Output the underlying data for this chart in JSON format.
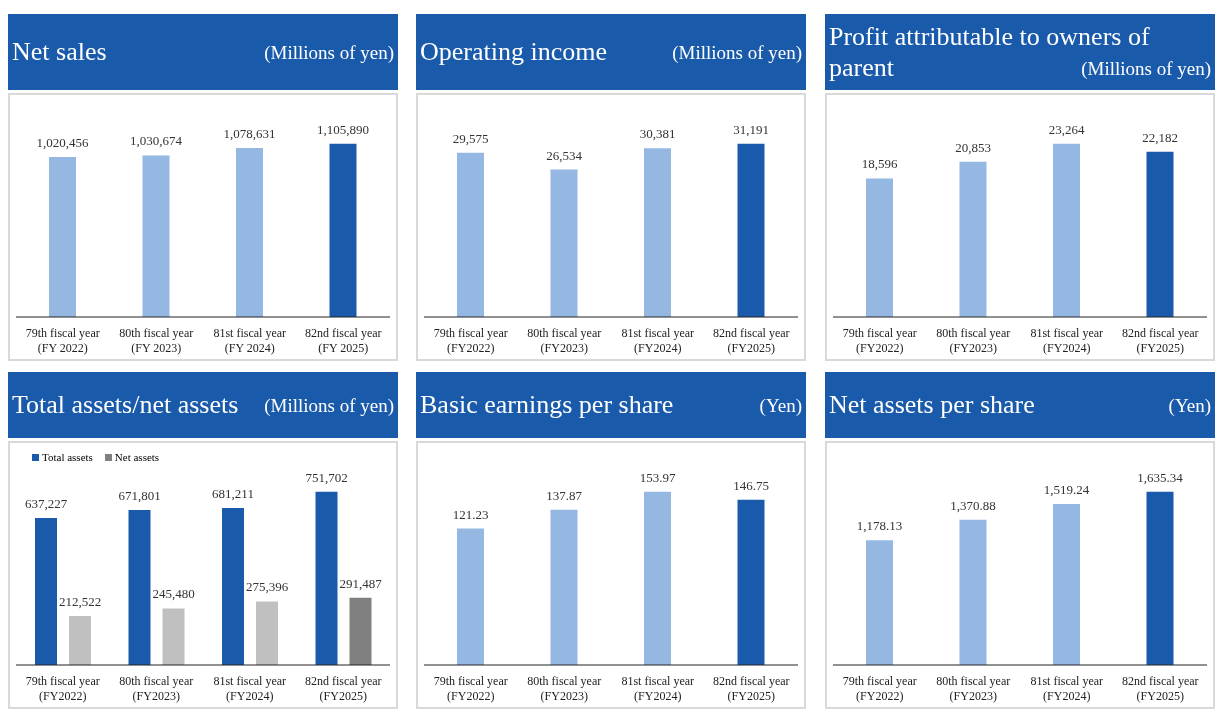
{
  "chart_data": [
    {
      "type": "bar",
      "title": "Net sales",
      "subtitle": "(Millions of yen)",
      "categories": [
        "79th fiscal year\n(FY 2022)",
        "80th fiscal year\n(FY 2023)",
        "81st fiscal year\n(FY 2024)",
        "82nd fiscal year\n(FY 2025)"
      ],
      "values": [
        1020456,
        1030674,
        1078631,
        1105890
      ],
      "value_labels": [
        "1,020,456",
        "1,030,674",
        "1,078,631",
        "1,105,890"
      ],
      "colors": [
        "#95b8e3",
        "#95b8e3",
        "#95b8e3",
        "#1a5aab"
      ],
      "tick_labels": "x"
    },
    {
      "type": "bar",
      "title": "Operating income",
      "subtitle": "(Millions of yen)",
      "categories": [
        "79th fiscal year\n(FY2022)",
        "80th fiscal year\n(FY2023)",
        "81st fiscal year\n(FY2024)",
        "82nd fiscal year\n(FY2025)"
      ],
      "values": [
        29575,
        26534,
        30381,
        31191
      ],
      "value_labels": [
        "29,575",
        "26,534",
        "30,381",
        "31,191"
      ],
      "colors": [
        "#95b8e3",
        "#95b8e3",
        "#95b8e3",
        "#1a5aab"
      ],
      "tick_labels": "x"
    },
    {
      "type": "bar",
      "title": "Profit attributable to owners of parent",
      "subtitle": "(Millions of yen)",
      "categories": [
        "79th fiscal year\n(FY2022)",
        "80th fiscal year\n(FY2023)",
        "81st fiscal year\n(FY2024)",
        "82nd fiscal year\n(FY2025)"
      ],
      "values": [
        18596,
        20853,
        23264,
        22182
      ],
      "value_labels": [
        "18,596",
        "20,853",
        "23,264",
        "22,182"
      ],
      "colors": [
        "#95b8e3",
        "#95b8e3",
        "#95b8e3",
        "#1a5aab"
      ],
      "tick_labels": "x"
    },
    {
      "type": "bar",
      "title": "Total assets/net assets",
      "subtitle": "(Millions of yen)",
      "categories": [
        "79th fiscal year\n(FY2022)",
        "80th fiscal year\n(FY2023)",
        "81st fiscal year\n(FY2024)",
        "82nd fiscal year\n(FY2025)"
      ],
      "series": [
        {
          "name": "Total assets",
          "color": "#1a5aab",
          "values": [
            637227,
            671801,
            681211,
            751702
          ],
          "value_labels": [
            "637,227",
            "671,801",
            "681,211",
            "751,702"
          ]
        },
        {
          "name": "Net assets",
          "color": "#808080",
          "colors": [
            "#c0c0c0",
            "#c0c0c0",
            "#c0c0c0",
            "#808080"
          ],
          "values": [
            212522,
            245480,
            275396,
            291487
          ],
          "value_labels": [
            "212,522",
            "245,480",
            "275,396",
            "291,487"
          ]
        }
      ],
      "legend": "top left",
      "tick_labels": "x"
    },
    {
      "type": "bar",
      "title": "Basic earnings per share",
      "subtitle": "(Yen)",
      "categories": [
        "79th fiscal year\n(FY2022)",
        "80th fiscal year\n(FY2023)",
        "81st fiscal year\n(FY2024)",
        "82nd fiscal year\n(FY2025)"
      ],
      "values": [
        121.23,
        137.87,
        153.97,
        146.75
      ],
      "colors": [
        "#95b8e3",
        "#95b8e3",
        "#95b8e3",
        "#1a5aab"
      ],
      "data_labels": true,
      "tick_labels": "x"
    },
    {
      "type": "bar",
      "title": "Net assets per share",
      "subtitle": "(Yen)",
      "categories": [
        "79th fiscal year\n(FY2022)",
        "80th fiscal year\n(FY2023)",
        "81st fiscal year\n(FY2024)",
        "82nd fiscal year\n(FY2025)"
      ],
      "values": [
        1178.13,
        1370.88,
        1519.24,
        1635.34
      ],
      "value_labels": [
        "1,178.13",
        "1,370.88",
        "1,519.24",
        "1,635.34"
      ],
      "colors": [
        "#95b8e3",
        "#95b8e3",
        "#95b8e3",
        "#1a5aab"
      ],
      "tick_labels": "x"
    }
  ]
}
